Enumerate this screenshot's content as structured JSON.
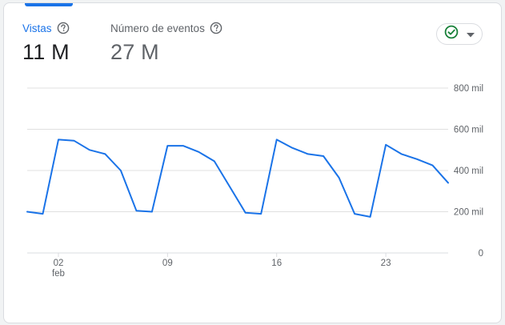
{
  "metrics": [
    {
      "label": "Vistas",
      "value": "11 M",
      "active": true
    },
    {
      "label": "Número de eventos",
      "value": "27 M",
      "active": false
    }
  ],
  "icons": {
    "help": "help-circle-icon",
    "status": "check-circle-icon",
    "dropdown": "caret-down-icon"
  },
  "colors": {
    "accent": "#1a73e8",
    "status_ok": "#188038",
    "line": "#1a73e8",
    "grid": "#e0e0e0"
  },
  "chart_data": {
    "type": "line",
    "series": [
      {
        "name": "Vistas",
        "values": [
          {
            "x": "2024-01-31",
            "y": 200000
          },
          {
            "x": "2024-02-01",
            "y": 190000
          },
          {
            "x": "2024-02-02",
            "y": 550000
          },
          {
            "x": "2024-02-03",
            "y": 545000
          },
          {
            "x": "2024-02-04",
            "y": 500000
          },
          {
            "x": "2024-02-05",
            "y": 480000
          },
          {
            "x": "2024-02-06",
            "y": 400000
          },
          {
            "x": "2024-02-07",
            "y": 205000
          },
          {
            "x": "2024-02-08",
            "y": 200000
          },
          {
            "x": "2024-02-09",
            "y": 520000
          },
          {
            "x": "2024-02-10",
            "y": 520000
          },
          {
            "x": "2024-02-11",
            "y": 490000
          },
          {
            "x": "2024-02-12",
            "y": 445000
          },
          {
            "x": "2024-02-13",
            "y": 320000
          },
          {
            "x": "2024-02-14",
            "y": 195000
          },
          {
            "x": "2024-02-15",
            "y": 190000
          },
          {
            "x": "2024-02-16",
            "y": 550000
          },
          {
            "x": "2024-02-17",
            "y": 510000
          },
          {
            "x": "2024-02-18",
            "y": 480000
          },
          {
            "x": "2024-02-19",
            "y": 470000
          },
          {
            "x": "2024-02-20",
            "y": 365000
          },
          {
            "x": "2024-02-21",
            "y": 190000
          },
          {
            "x": "2024-02-22",
            "y": 175000
          },
          {
            "x": "2024-02-23",
            "y": 525000
          },
          {
            "x": "2024-02-24",
            "y": 480000
          },
          {
            "x": "2024-02-25",
            "y": 455000
          },
          {
            "x": "2024-02-26",
            "y": 425000
          },
          {
            "x": "2024-02-27",
            "y": 340000
          }
        ]
      }
    ],
    "yticks": [
      {
        "value": 0,
        "label": "0"
      },
      {
        "value": 200000,
        "label": "200 mil"
      },
      {
        "value": 400000,
        "label": "400 mil"
      },
      {
        "value": 600000,
        "label": "600 mil"
      },
      {
        "value": 800000,
        "label": "800 mil"
      }
    ],
    "xticks": [
      {
        "x": "2024-02-02",
        "label": "02",
        "sublabel": "feb"
      },
      {
        "x": "2024-02-09",
        "label": "09"
      },
      {
        "x": "2024-02-16",
        "label": "16"
      },
      {
        "x": "2024-02-23",
        "label": "23"
      }
    ],
    "xlim": [
      "2024-01-31",
      "2024-02-27"
    ],
    "ylim": [
      0,
      800000
    ],
    "grid": true
  }
}
